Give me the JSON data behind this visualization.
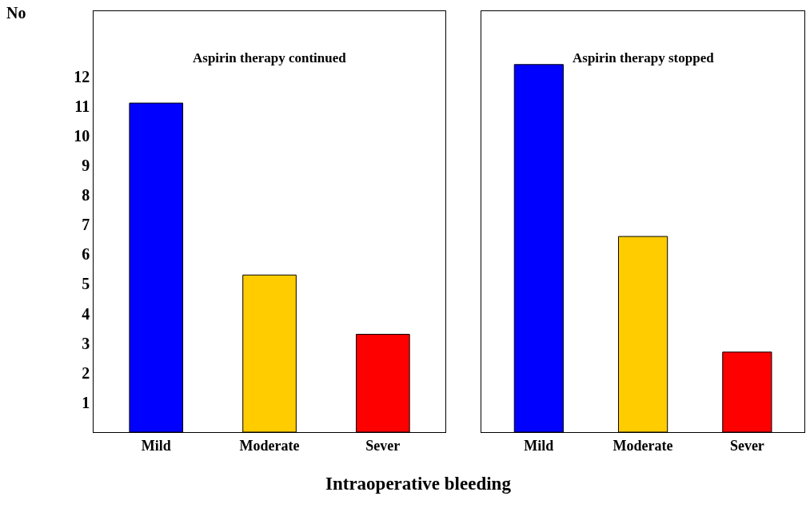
{
  "chart_data": [
    {
      "type": "bar",
      "title": "Aspirin therapy continued",
      "ylabel": "No",
      "xlabel": "Intraoperative bleeding",
      "categories": [
        "Mild",
        "Moderate",
        "Sever"
      ],
      "values": [
        11.1,
        5.3,
        3.3
      ],
      "colors": [
        "#0000ff",
        "#ffcc00",
        "#ff0000"
      ],
      "ylim": [
        0,
        14.2
      ],
      "yticks": [
        1,
        2,
        3,
        4,
        5,
        6,
        7,
        8,
        9,
        10,
        11,
        12
      ]
    },
    {
      "type": "bar",
      "title": "Aspirin therapy stopped",
      "categories": [
        "Mild",
        "Moderate",
        "Sever"
      ],
      "values": [
        12.4,
        6.6,
        2.7
      ],
      "colors": [
        "#0000ff",
        "#ffcc00",
        "#ff0000"
      ],
      "ylim": [
        0,
        14.2
      ],
      "yticks": [
        1,
        2,
        3,
        4,
        5,
        6,
        7,
        8,
        9,
        10,
        11,
        12
      ],
      "tick_labels": "x"
    }
  ]
}
